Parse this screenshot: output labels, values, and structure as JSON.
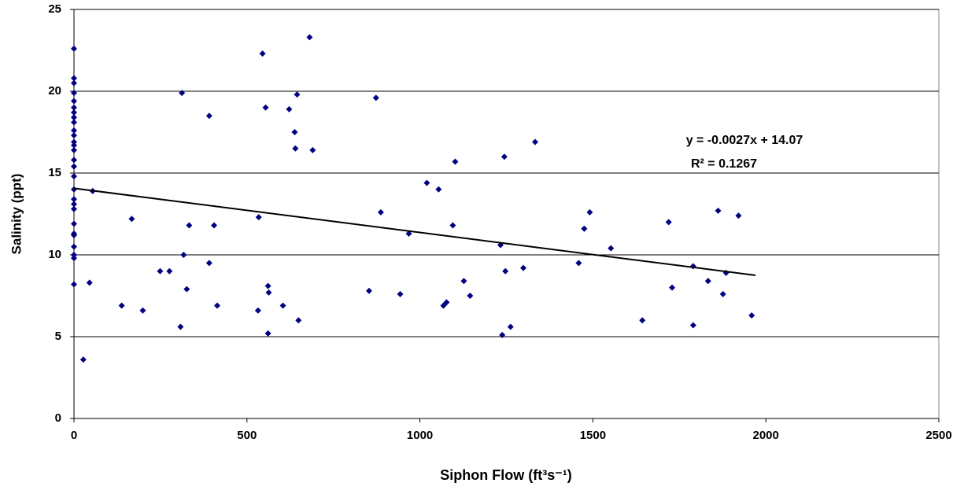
{
  "chart_data": {
    "type": "scatter",
    "x_label": "Siphon Flow (ft³s⁻¹)",
    "y_label": "Salinity (ppt)",
    "annotations": [
      "y = -0.0027x + 14.07",
      "R² = 0.1267"
    ],
    "color": "#000080",
    "x": [
      0,
      0,
      0,
      0,
      0,
      0,
      0,
      0,
      0,
      0,
      0,
      0,
      0,
      0,
      0,
      0,
      0,
      0,
      0,
      0,
      0,
      0,
      0,
      0,
      0,
      0,
      0,
      0,
      27,
      45,
      54,
      138,
      167,
      199,
      249,
      276,
      308,
      312,
      317,
      326,
      333,
      391,
      391,
      405,
      414,
      532,
      534,
      545,
      554,
      561,
      563,
      561,
      604,
      622,
      638,
      640,
      645,
      649,
      681,
      690,
      853,
      873,
      887,
      943,
      968,
      1020,
      1054,
      1068,
      1077,
      1095,
      1102,
      1127,
      1145,
      1233,
      1238,
      1244,
      1247,
      1262,
      1299,
      1333,
      1459,
      1475,
      1491,
      1552,
      1643,
      1719,
      1729,
      1790,
      1790,
      1833,
      1862,
      1876,
      1885,
      1921,
      1959
    ],
    "values": [
      22.6,
      20.8,
      20.5,
      19.9,
      19.4,
      19.0,
      18.7,
      18.4,
      18.1,
      17.6,
      17.3,
      16.9,
      16.7,
      16.4,
      15.8,
      15.4,
      14.8,
      14.0,
      13.4,
      13.1,
      12.8,
      11.9,
      11.3,
      11.2,
      10.5,
      10.0,
      9.8,
      8.2,
      3.6,
      8.3,
      13.9,
      6.9,
      12.2,
      6.6,
      9.0,
      9.0,
      5.6,
      19.9,
      10.0,
      7.9,
      11.8,
      18.5,
      9.5,
      11.8,
      6.9,
      6.6,
      12.3,
      22.3,
      19.0,
      8.1,
      7.7,
      5.2,
      6.9,
      18.9,
      17.5,
      16.5,
      19.8,
      6.0,
      23.3,
      16.4,
      7.8,
      19.6,
      12.6,
      7.6,
      11.3,
      14.4,
      14.0,
      6.9,
      7.1,
      11.8,
      15.7,
      8.4,
      7.5,
      10.6,
      5.1,
      16.0,
      9.0,
      5.6,
      9.2,
      16.9,
      9.5,
      11.6,
      12.6,
      10.4,
      6.0,
      12.0,
      8.0,
      9.3,
      5.7,
      8.4,
      12.7,
      7.6,
      8.9,
      12.4,
      6.3
    ],
    "trendline": {
      "x": [
        0,
        1970
      ],
      "values": [
        14.07,
        8.75
      ],
      "color": "#000000"
    },
    "xlim": [
      0,
      2500
    ],
    "xticks": [
      0,
      500,
      1000,
      1500,
      2000,
      2500
    ],
    "ylim": [
      0,
      25
    ],
    "yticks": [
      0,
      5,
      10,
      15,
      20,
      25
    ],
    "grid": true
  }
}
